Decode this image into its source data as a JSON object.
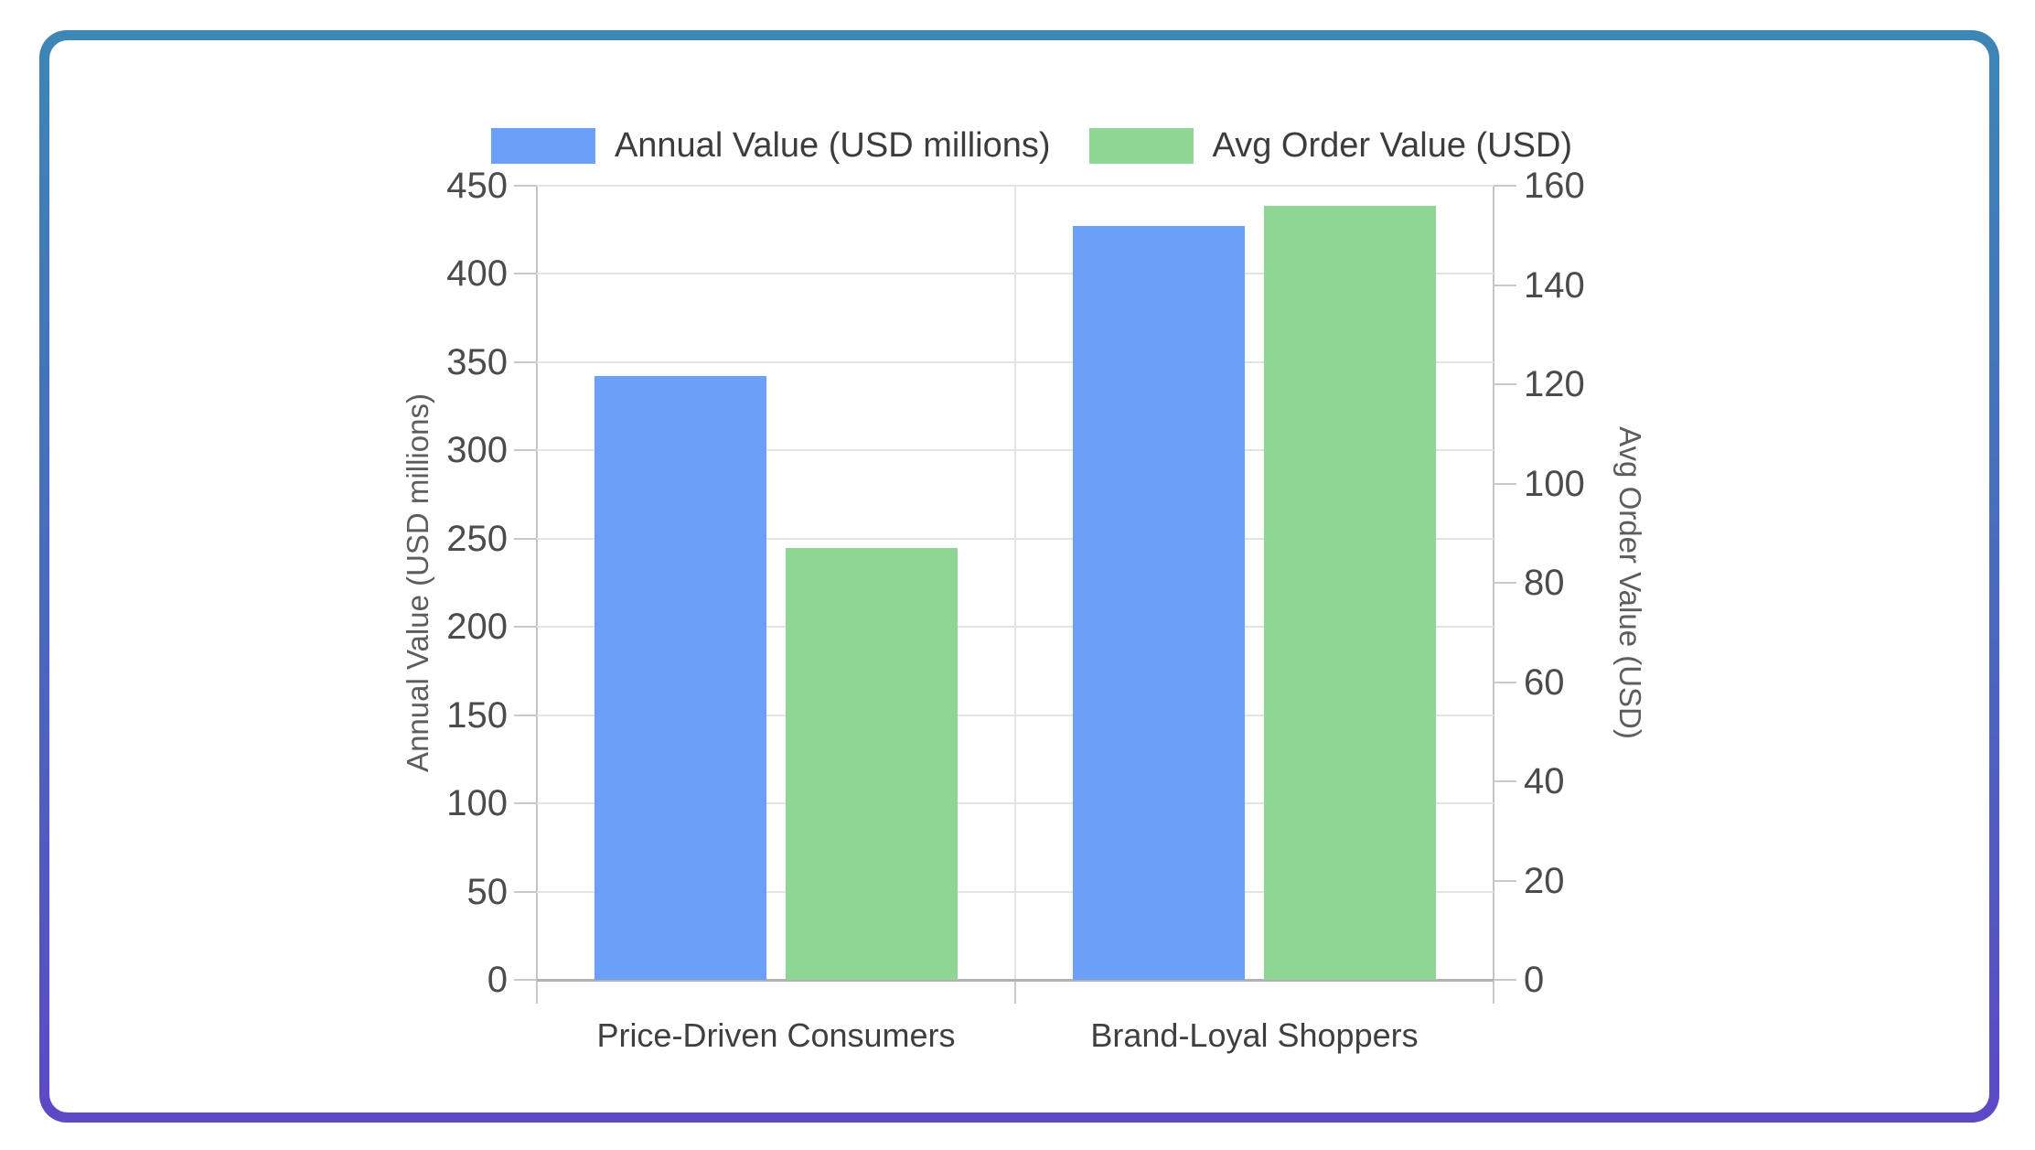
{
  "frame": {
    "border_top_color": "#3d86b5",
    "border_bottom_color": "#5c49c5",
    "background": "#ffffff"
  },
  "chart_data": {
    "type": "bar",
    "categories": [
      "Price-Driven Consumers",
      "Brand-Loyal Shoppers"
    ],
    "series": [
      {
        "name": "Annual Value (USD millions)",
        "axis": "left",
        "color": "#6c9ff8",
        "values": [
          342,
          427
        ]
      },
      {
        "name": "Avg Order Value (USD)",
        "axis": "right",
        "color": "#8fd694",
        "values": [
          87,
          156
        ]
      }
    ],
    "y_left": {
      "label": "Annual Value (USD millions)",
      "min": 0,
      "max": 450,
      "step": 50
    },
    "y_right": {
      "label": "Avg Order Value (USD)",
      "min": 0,
      "max": 160,
      "step": 20
    },
    "legend_position": "top",
    "grid": true,
    "colors": {
      "gridline": "#e4e4e4",
      "baseline": "#b3b3b3",
      "axis_line": "#c4c4c4",
      "tick_mark": "#c9c9c9"
    }
  }
}
